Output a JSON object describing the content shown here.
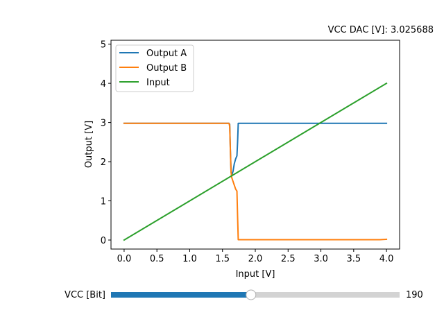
{
  "chart_data": {
    "type": "line",
    "title": "VCC DAC [V]: 3.025688",
    "xlabel": "Input [V]",
    "ylabel": "Output [V]",
    "xlim": [
      -0.2,
      4.2
    ],
    "ylim": [
      -0.23,
      5.1
    ],
    "x_ticks": [
      0.0,
      0.5,
      1.0,
      1.5,
      2.0,
      2.5,
      3.0,
      3.5,
      4.0
    ],
    "x_tick_labels": [
      "0.0",
      "0.5",
      "1.0",
      "1.5",
      "2.0",
      "2.5",
      "3.0",
      "3.5",
      "4.0"
    ],
    "y_ticks": [
      0,
      1,
      2,
      3,
      4,
      5
    ],
    "y_tick_labels": [
      "0",
      "1",
      "2",
      "3",
      "4",
      "5"
    ],
    "grid": false,
    "legend_position": "top-left",
    "series": [
      {
        "name": "Output A",
        "color": "#1f77b4",
        "x": [
          0.0,
          1.6,
          1.61,
          1.62,
          1.63,
          1.64,
          1.66,
          1.68,
          1.7,
          1.72,
          1.73,
          1.74,
          1.75,
          2.0,
          3.0,
          4.0
        ],
        "y": [
          2.98,
          2.98,
          2.95,
          2.3,
          1.75,
          1.65,
          1.75,
          1.95,
          2.07,
          2.15,
          2.5,
          2.98,
          2.98,
          2.98,
          2.98,
          2.98
        ]
      },
      {
        "name": "Output B",
        "color": "#ff7f0e",
        "x": [
          0.0,
          1.6,
          1.61,
          1.62,
          1.63,
          1.64,
          1.66,
          1.68,
          1.7,
          1.72,
          1.73,
          1.74,
          1.75,
          2.0,
          3.0,
          3.9,
          4.0
        ],
        "y": [
          2.98,
          2.98,
          2.9,
          2.3,
          1.75,
          1.6,
          1.5,
          1.4,
          1.3,
          1.25,
          0.6,
          0.01,
          0.01,
          0.01,
          0.01,
          0.01,
          0.02
        ]
      },
      {
        "name": "Input",
        "color": "#2ca02c",
        "x": [
          0.0,
          4.0
        ],
        "y": [
          0.0,
          4.0
        ]
      }
    ]
  },
  "slider": {
    "label": "VCC [Bit]",
    "value_text": "190",
    "fill_fraction": 0.485,
    "fill_color": "#1f77b4",
    "track_color": "#d3d3d3"
  }
}
